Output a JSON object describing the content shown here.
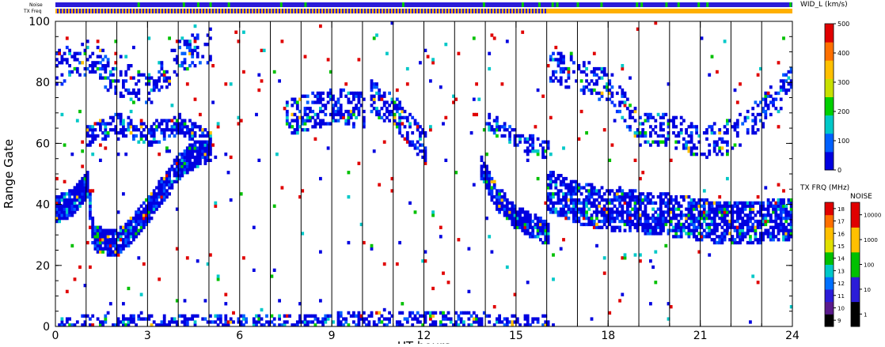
{
  "chart_data": {
    "type": "heatmap",
    "title": "",
    "xlabel": "UT hours",
    "ylabel": "Range Gate",
    "xlim": [
      0,
      24
    ],
    "ylim": [
      0,
      100
    ],
    "x_ticks": [
      "0",
      "3",
      "6",
      "9",
      "12",
      "15",
      "18",
      "21",
      "24"
    ],
    "y_ticks": [
      "0",
      "20",
      "40",
      "60",
      "80",
      "100"
    ],
    "grid": "vertical lines each hour",
    "top_strips": {
      "noise_label": "Noise",
      "freq_label": "TX Freq",
      "noise_color": "#2b1cd8",
      "freq_color_before": "#2b1cd8",
      "freq_color_after": "#ffb000",
      "freq_change_hour": 16
    },
    "colorbar_width": {
      "label": "WID_L (km/s)",
      "min": 0,
      "max": 500,
      "ticks": [
        "0",
        "100",
        "200",
        "300",
        "400",
        "500"
      ],
      "colors": [
        "#0000e0",
        "#0060ff",
        "#00c8c8",
        "#00d000",
        "#c8e000",
        "#ffc000",
        "#ff7000",
        "#e00000"
      ]
    },
    "colorbar_freq": {
      "label": "TX FRQ (MHz)",
      "ticks": [
        "9",
        "10",
        "11",
        "12",
        "13",
        "14",
        "15",
        "16",
        "17",
        "18"
      ],
      "colors": [
        "#000000",
        "#5a1a8c",
        "#2b1cd8",
        "#0070ff",
        "#00c8c8",
        "#00c000",
        "#e0e000",
        "#ffc000",
        "#ff7000",
        "#e00000"
      ]
    },
    "colorbar_noise": {
      "label": "NOISE",
      "ticks": [
        "1",
        "10",
        "100",
        "1000",
        "10000"
      ],
      "colors": [
        "#000000",
        "#2b1cd8",
        "#00c000",
        "#ffc000",
        "#e00000"
      ]
    },
    "bands": [
      {
        "points": [
          [
            0,
            38
          ],
          [
            0.5,
            40
          ],
          [
            1,
            46
          ],
          [
            1.2,
            28
          ],
          [
            2,
            27
          ],
          [
            2.5,
            32
          ],
          [
            3,
            38
          ],
          [
            3.5,
            45
          ],
          [
            4,
            52
          ],
          [
            4.5,
            56
          ],
          [
            5,
            58
          ]
        ],
        "width": 7,
        "density": 0.9
      },
      {
        "points": [
          [
            1,
            62
          ],
          [
            2,
            66
          ],
          [
            3,
            62
          ],
          [
            4,
            66
          ],
          [
            5,
            60
          ]
        ],
        "width": 5,
        "density": 0.6
      },
      {
        "points": [
          [
            0,
            84
          ],
          [
            1,
            88
          ],
          [
            2,
            80
          ],
          [
            3,
            78
          ],
          [
            4,
            88
          ],
          [
            5,
            92
          ]
        ],
        "width": 10,
        "density": 0.3
      },
      {
        "points": [
          [
            7.5,
            68
          ],
          [
            9,
            72
          ],
          [
            10,
            70
          ]
        ],
        "width": 10,
        "density": 0.45
      },
      {
        "points": [
          [
            10.2,
            75
          ],
          [
            11,
            70
          ],
          [
            11.5,
            64
          ],
          [
            12,
            58
          ]
        ],
        "width": 9,
        "density": 0.5
      },
      {
        "points": [
          [
            13.8,
            52
          ],
          [
            14.3,
            42
          ],
          [
            15,
            35
          ],
          [
            16,
            30
          ]
        ],
        "width": 6,
        "density": 0.85
      },
      {
        "points": [
          [
            14,
            68
          ],
          [
            15,
            60
          ],
          [
            16,
            58
          ]
        ],
        "width": 5,
        "density": 0.45
      },
      {
        "points": [
          [
            16,
            44
          ],
          [
            17,
            40
          ],
          [
            18,
            38
          ],
          [
            20,
            36
          ],
          [
            22,
            33
          ],
          [
            24,
            35
          ]
        ],
        "width": 12,
        "density": 0.7
      },
      {
        "points": [
          [
            16,
            85
          ],
          [
            17,
            82
          ],
          [
            18,
            78
          ],
          [
            19,
            64
          ],
          [
            20,
            64
          ],
          [
            21,
            60
          ],
          [
            22,
            62
          ],
          [
            23,
            70
          ],
          [
            24,
            80
          ]
        ],
        "width": 9,
        "density": 0.35
      },
      {
        "points": [
          [
            0,
            1
          ],
          [
            6,
            1
          ],
          [
            12,
            2
          ],
          [
            16,
            1
          ]
        ],
        "width": 3,
        "density": 0.45
      }
    ],
    "scatter_fraction": 0.012
  }
}
